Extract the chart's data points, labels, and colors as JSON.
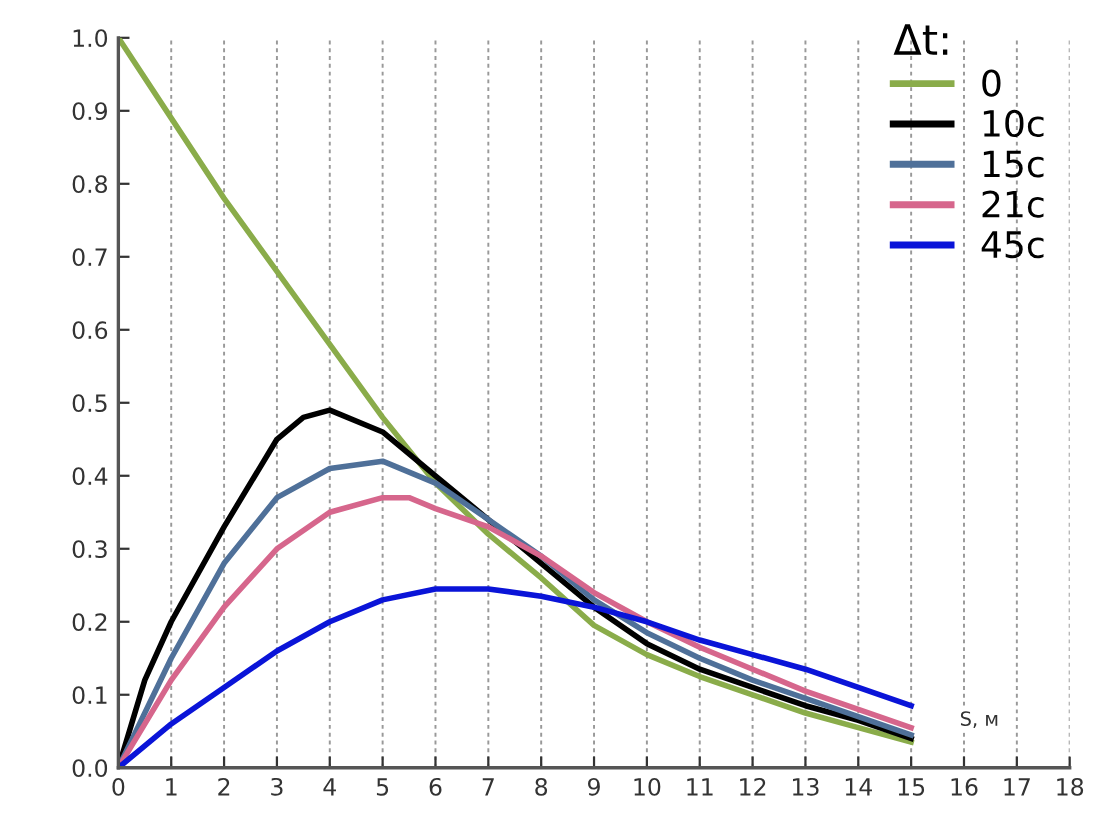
{
  "chart_data": {
    "type": "line",
    "legend_title": "Δt:",
    "legend": "top right",
    "grid": "x",
    "line_style": "solid",
    "x": [
      0,
      1,
      2,
      3,
      4,
      5,
      6,
      7,
      8,
      9,
      10,
      11,
      12,
      13,
      14,
      15
    ],
    "series": [
      {
        "name": "0",
        "color": "#8aac4a",
        "values": [
          1.0,
          0.89,
          0.78,
          0.68,
          0.58,
          0.48,
          0.39,
          0.32,
          0.26,
          0.195,
          0.155,
          0.125,
          0.1,
          0.075,
          0.055,
          0.035
        ]
      },
      {
        "name": "10c",
        "color": "#000000",
        "x": [
          0,
          0.5,
          1,
          2,
          3,
          3.5,
          4,
          5,
          6,
          7,
          8,
          9,
          10,
          11,
          12,
          13,
          14,
          15
        ],
        "values": [
          0,
          0.12,
          0.2,
          0.33,
          0.45,
          0.48,
          0.49,
          0.46,
          0.4,
          0.34,
          0.28,
          0.22,
          0.17,
          0.135,
          0.11,
          0.085,
          0.065,
          0.04
        ]
      },
      {
        "name": "15c",
        "color": "#4f7099",
        "values": [
          0,
          0.15,
          0.28,
          0.37,
          0.41,
          0.42,
          0.39,
          0.34,
          0.29,
          0.23,
          0.185,
          0.15,
          0.12,
          0.095,
          0.07,
          0.045
        ]
      },
      {
        "name": "21c",
        "color": "#d6668c",
        "x": [
          0,
          1,
          2,
          3,
          4,
          5,
          5.5,
          6,
          7,
          8,
          9,
          10,
          11,
          12,
          13,
          14,
          15
        ],
        "values": [
          0,
          0.12,
          0.22,
          0.3,
          0.35,
          0.37,
          0.37,
          0.355,
          0.33,
          0.29,
          0.24,
          0.2,
          0.165,
          0.135,
          0.105,
          0.08,
          0.055
        ]
      },
      {
        "name": "45c",
        "color": "#0a14d8",
        "values": [
          0,
          0.06,
          0.11,
          0.16,
          0.2,
          0.23,
          0.245,
          0.245,
          0.235,
          0.22,
          0.2,
          0.175,
          0.155,
          0.135,
          0.11,
          0.085
        ]
      }
    ],
    "xlim": [
      0,
      18
    ],
    "xticks": [
      0,
      1,
      2,
      3,
      4,
      5,
      6,
      7,
      8,
      9,
      10,
      11,
      12,
      13,
      14,
      15,
      16,
      17,
      18
    ],
    "ylim": [
      0,
      1.0
    ],
    "yticks": [
      {
        "value": 0,
        "label": "0.0"
      },
      0.1,
      0.2,
      0.3,
      0.4,
      0.5,
      0.6,
      0.7,
      0.8,
      0.9,
      {
        "value": 1.0,
        "label": "1.0"
      }
    ],
    "annotations": [
      "S, м"
    ]
  }
}
